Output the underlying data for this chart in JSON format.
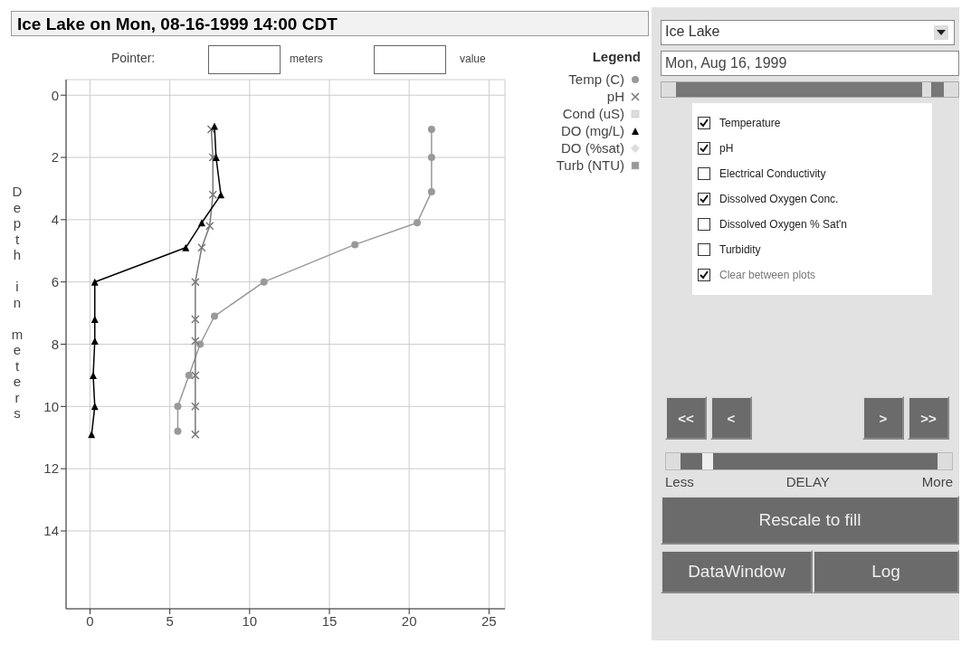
{
  "chart_data": [
    {
      "type": "line",
      "title": "Ice Lake on Mon, 08-16-1999 14:00 CDT",
      "ylabel": "Depth in meters",
      "legend_title": "Legend",
      "legend": "top right",
      "xlim": [
        -1.5,
        26
      ],
      "xticks": [
        0,
        5,
        10,
        15,
        20,
        25
      ],
      "ylim": [
        16.5,
        -0.5
      ],
      "yticks": [
        0,
        2,
        4,
        6,
        8,
        10,
        12,
        14
      ],
      "grid": true,
      "series": [
        {
          "name": "Temp (C)",
          "color": "#999999",
          "marker": "circle",
          "x": [
            21.4,
            21.4,
            21.4,
            20.5,
            16.6,
            10.9,
            7.8,
            6.9,
            6.2,
            5.5,
            5.5
          ],
          "values": [
            1.1,
            2,
            3.1,
            4.1,
            4.8,
            6,
            7.1,
            8,
            9,
            10,
            10.8
          ]
        },
        {
          "name": "pH",
          "color": "#777777",
          "marker": "cross",
          "x": [
            7.6,
            7.7,
            7.7,
            7.5,
            7.0,
            6.6,
            6.6,
            6.6,
            6.6,
            6.6,
            6.6
          ],
          "values": [
            1.1,
            2,
            3.2,
            4.2,
            4.9,
            6,
            7.2,
            7.9,
            9,
            10,
            10.9
          ]
        },
        {
          "name": "Cond (uS)",
          "color": "#dddddd",
          "marker": "square"
        },
        {
          "name": "DO (mg/L)",
          "color": "#000000",
          "marker": "triangle",
          "x": [
            7.8,
            7.9,
            8.2,
            7.0,
            6.0,
            0.3,
            0.3,
            0.3,
            0.2,
            0.3,
            0.1
          ],
          "values": [
            1.0,
            2.0,
            3.2,
            4.1,
            4.9,
            6,
            7.2,
            7.9,
            9,
            10,
            10.9
          ]
        },
        {
          "name": "DO (%sat)",
          "color": "#dddddd",
          "marker": "diamond"
        },
        {
          "name": "Turb (NTU)",
          "color": "#999999",
          "marker": "square"
        }
      ]
    },
    {
      "type": "other",
      "annotations": [
        "Pointer:",
        "meters",
        "value",
        "Ice Lake",
        "Mon, Aug 16, 1999",
        "Temperature",
        "pH",
        "Electrical Conductivity",
        "Dissolved Oxygen Conc.",
        "Dissolved Oxygen % Sat'n",
        "Turbidity",
        "Clear between plots",
        "<<",
        "<",
        ">",
        ">>",
        "Less",
        "DELAY",
        "More",
        "Rescale to fill",
        "DataWindow",
        "Log"
      ]
    }
  ]
}
